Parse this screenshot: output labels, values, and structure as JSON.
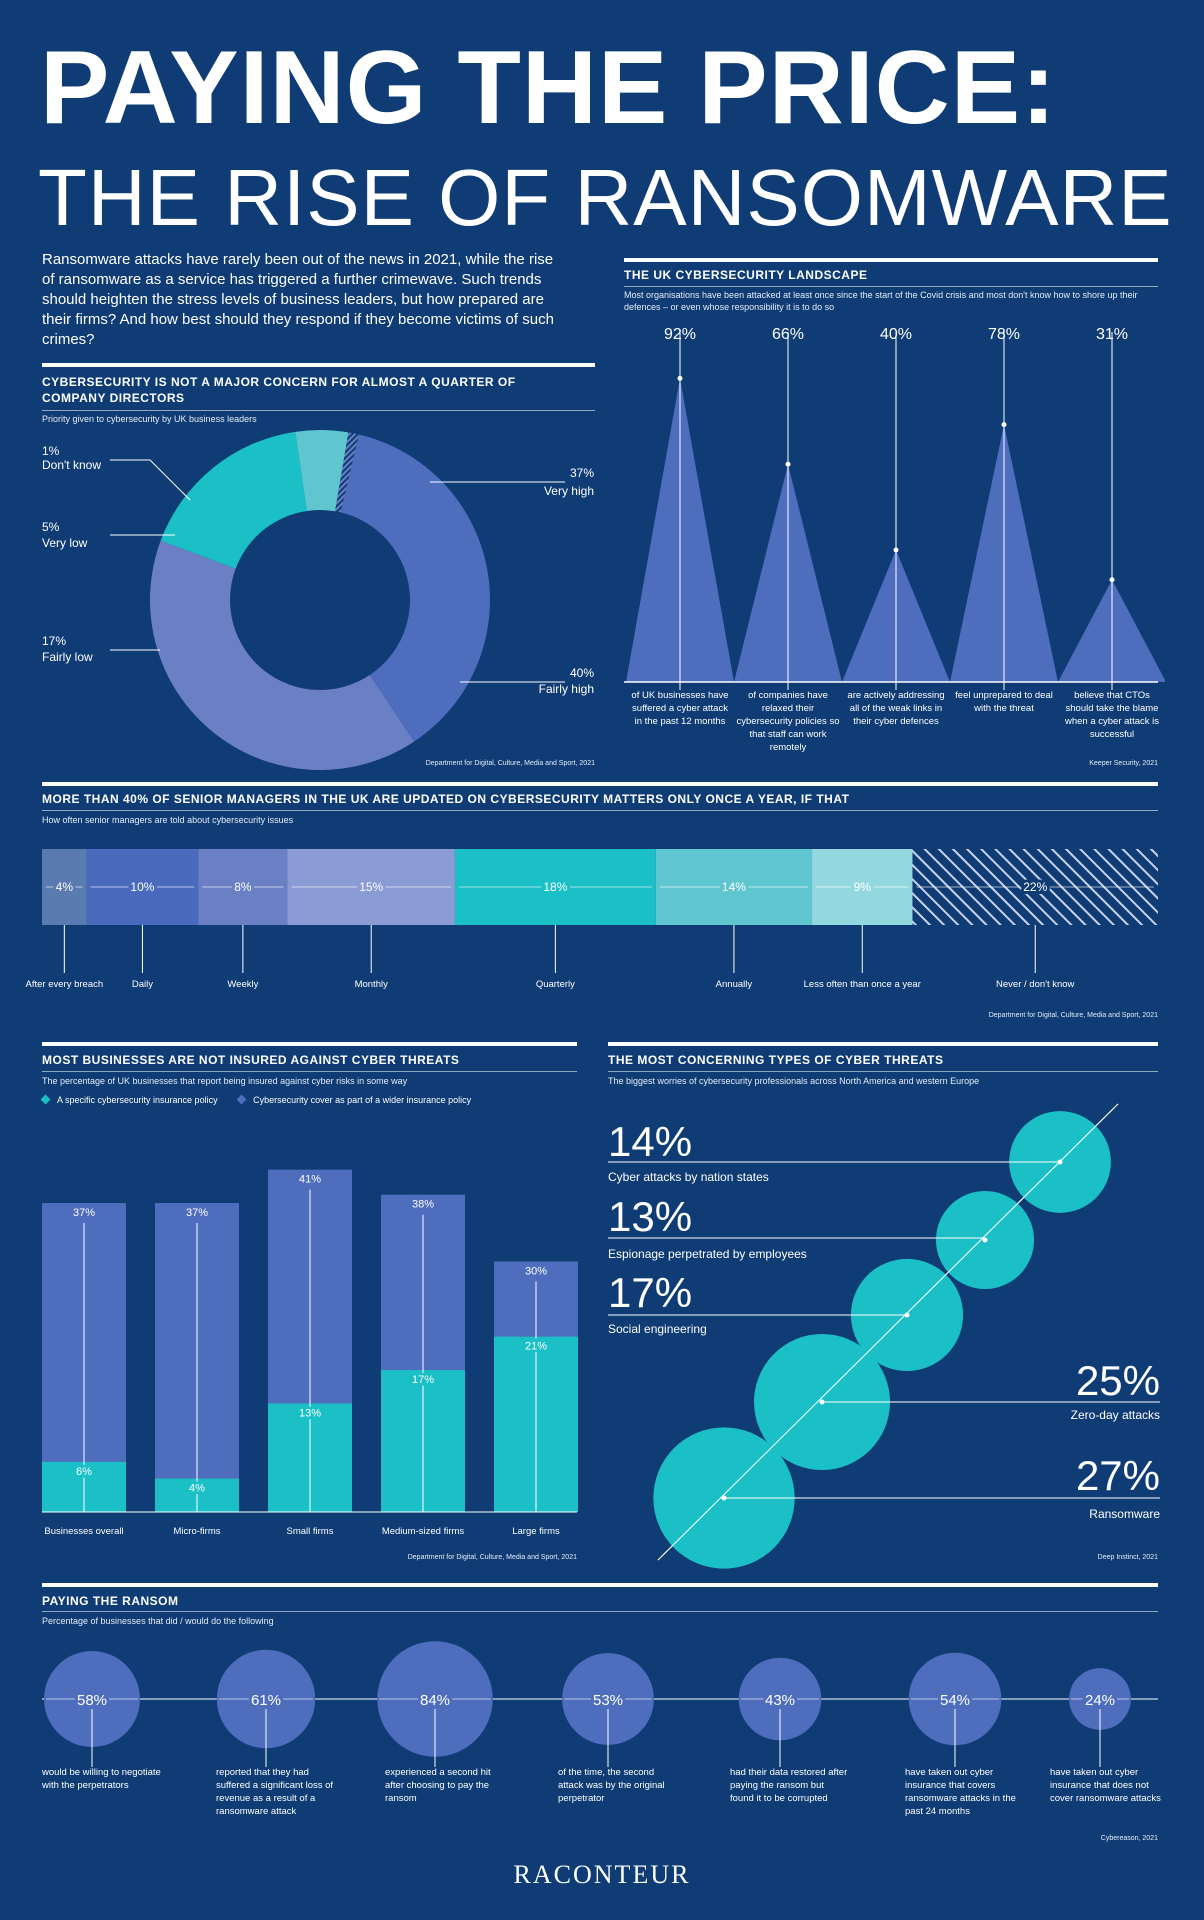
{
  "header": {
    "title": "PAYING THE PRICE:",
    "subtitle": "THE RISE OF RANSOMWARE",
    "intro": "Ransomware attacks have rarely been out of the news in 2021, while the rise of ransomware as a service has triggered a further crimewave. Such trends should heighten the stress levels of business leaders, but how prepared are their firms? And how best should they respond if they become victims of such crimes?"
  },
  "colors": {
    "background": "#0f3c74",
    "purple": "#4f6dbd",
    "lilac": "#6b80c4",
    "lavender": "#8b9bd4",
    "teal": "#1bbfc6",
    "teal_light": "#5fc6cf",
    "teal_pale": "#94d8df"
  },
  "footer": {
    "brand": "RACONTEUR"
  },
  "chart_data": [
    {
      "id": "priority",
      "type": "pie",
      "title": "CYBERSECURITY IS NOT A MAJOR CONCERN FOR ALMOST A QUARTER OF COMPANY DIRECTORS",
      "subtitle": "Priority given to cybersecurity by UK business leaders",
      "source": "Department for Digital, Culture, Media and Sport, 2021",
      "slices": [
        {
          "label": "Very high",
          "value": 37,
          "pct": "37%",
          "color": "#4f6dbd"
        },
        {
          "label": "Fairly high",
          "value": 40,
          "pct": "40%",
          "color": "#6b80c4"
        },
        {
          "label": "Fairly low",
          "value": 17,
          "pct": "17%",
          "color": "#1bbfc6"
        },
        {
          "label": "Very low",
          "value": 5,
          "pct": "5%",
          "color": "#5fc6cf"
        },
        {
          "label": "Don't know",
          "value": 1,
          "pct": "1%",
          "color": "hatch"
        }
      ]
    },
    {
      "id": "landscape",
      "type": "bar",
      "title": "THE UK CYBERSECURITY LANDSCAPE",
      "subtitle": "Most organisations have been attacked at least once since the start of the Covid crisis and most don't know how to shore up their defences – or even whose responsibility it is to do so",
      "source": "Keeper Security, 2021",
      "ylim": [
        0,
        100
      ],
      "items": [
        {
          "value": 92,
          "pct": "92%",
          "desc": "of UK businesses have suffered a cyber attack in the past 12 months"
        },
        {
          "value": 66,
          "pct": "66%",
          "desc": "of companies have relaxed their cybersecurity policies so that staff can work remotely"
        },
        {
          "value": 40,
          "pct": "40%",
          "desc": "are actively addressing all of the weak links in their cyber defences"
        },
        {
          "value": 78,
          "pct": "78%",
          "desc": "feel unprepared to deal with the threat"
        },
        {
          "value": 31,
          "pct": "31%",
          "desc": "believe that CTOs should take the blame when a cyber attack is successful"
        }
      ]
    },
    {
      "id": "updates",
      "type": "bar",
      "title": "MORE THAN 40% OF SENIOR MANAGERS IN THE UK ARE UPDATED ON CYBERSECURITY MATTERS ONLY ONCE A YEAR, IF THAT",
      "subtitle": "How often senior managers are told about cybersecurity issues",
      "source": "Department for Digital, Culture, Media and Sport, 2021",
      "segments": [
        {
          "label": "After every breach",
          "value": 4,
          "pct": "4%",
          "color": "#5a7bb0"
        },
        {
          "label": "Daily",
          "value": 10,
          "pct": "10%",
          "color": "#4a6bbd"
        },
        {
          "label": "Weekly",
          "value": 8,
          "pct": "8%",
          "color": "#6b80c4"
        },
        {
          "label": "Monthly",
          "value": 15,
          "pct": "15%",
          "color": "#8b9bd4"
        },
        {
          "label": "Quarterly",
          "value": 18,
          "pct": "18%",
          "color": "#1bbfc6"
        },
        {
          "label": "Annually",
          "value": 14,
          "pct": "14%",
          "color": "#5fc6cf"
        },
        {
          "label": "Less often than once a year",
          "value": 9,
          "pct": "9%",
          "color": "#94d8df"
        },
        {
          "label": "Never / don't know",
          "value": 22,
          "pct": "22%",
          "color": "hatch"
        }
      ]
    },
    {
      "id": "insurance",
      "type": "bar",
      "title": "MOST BUSINESSES ARE NOT INSURED AGAINST CYBER THREATS",
      "subtitle": "The percentage of UK businesses that report being insured against cyber risks in some way",
      "source": "Department for Digital, Culture, Media and Sport, 2021",
      "ylim": [
        0,
        45
      ],
      "categories": [
        "Businesses overall",
        "Micro-firms",
        "Small firms",
        "Medium-sized firms",
        "Large firms"
      ],
      "series": [
        {
          "name": "A specific cybersecurity insurance policy",
          "values": [
            6,
            4,
            13,
            17,
            21
          ],
          "labels": [
            "6%",
            "4%",
            "13%",
            "17%",
            "21%"
          ],
          "color": "#1bbfc6"
        },
        {
          "name": "Cybersecurity cover as part of a wider insurance policy",
          "values": [
            37,
            37,
            41,
            38,
            30
          ],
          "labels": [
            "37%",
            "37%",
            "41%",
            "38%",
            "30%"
          ],
          "color": "#4f6dbd"
        }
      ]
    },
    {
      "id": "threats",
      "type": "scatter",
      "title": "THE MOST CONCERNING TYPES OF CYBER THREATS",
      "subtitle": "The biggest worries of cybersecurity professionals across North America and western Europe",
      "source": "Deep Instinct, 2021",
      "items": [
        {
          "label": "Cyber attacks by nation states",
          "value": 14,
          "pct": "14%"
        },
        {
          "label": "Espionage perpetrated by employees",
          "value": 13,
          "pct": "13%"
        },
        {
          "label": "Social engineering",
          "value": 17,
          "pct": "17%"
        },
        {
          "label": "Zero-day attacks",
          "value": 25,
          "pct": "25%"
        },
        {
          "label": "Ransomware",
          "value": 27,
          "pct": "27%"
        }
      ]
    },
    {
      "id": "ransom",
      "type": "scatter",
      "title": "PAYING THE RANSOM",
      "subtitle": "Percentage of businesses that did / would do the following",
      "source": "Cybereason, 2021",
      "items": [
        {
          "value": 58,
          "pct": "58%",
          "desc": "would be willing to negotiate with the perpetrators"
        },
        {
          "value": 61,
          "pct": "61%",
          "desc": "reported that they had suffered a significant loss of revenue as a result of a ransomware attack"
        },
        {
          "value": 84,
          "pct": "84%",
          "desc": "experienced a second hit after choosing to pay the ransom"
        },
        {
          "value": 53,
          "pct": "53%",
          "desc": "of the time, the second attack was by the original perpetrator"
        },
        {
          "value": 43,
          "pct": "43%",
          "desc": "had their data restored after paying the ransom but found it to be corrupted"
        },
        {
          "value": 54,
          "pct": "54%",
          "desc": "have taken out cyber insurance that covers ransomware attacks in the past 24 months"
        },
        {
          "value": 24,
          "pct": "24%",
          "desc": "have taken out cyber insurance that does not cover ransomware attacks"
        }
      ]
    }
  ]
}
